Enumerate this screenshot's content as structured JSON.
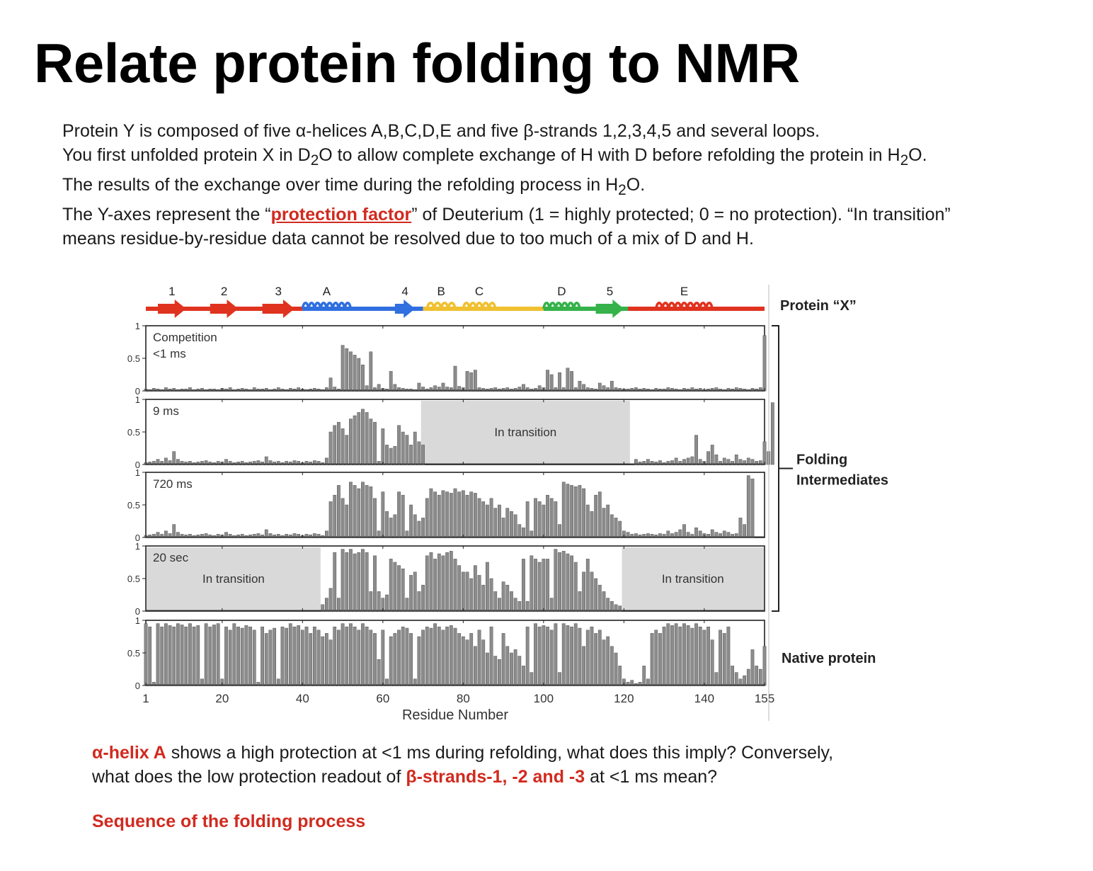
{
  "slide": {
    "title": "Relate protein folding to NMR",
    "intro": {
      "line1": "Protein Y is composed of five α-helices A,B,C,D,E and five β-strands 1,2,3,4,5 and several loops.",
      "line2_pre": "You first unfolded protein X in D",
      "line2_sub1": "2",
      "line2_mid": "O to allow complete exchange of H with D before refolding the protein in H",
      "line2_sub2": "2",
      "line2_post": "O.",
      "line3_pre": "The results of the exchange over time during the refolding process in H",
      "line3_sub": "2",
      "line3_post": "O.",
      "line4_pre": "The Y-axes represent the “",
      "line4_link": "protection factor",
      "line4_post": "” of Deuterium (1 = highly protected; 0 = no protection). “In transition”",
      "line5": "means residue-by-residue data cannot be resolved due to too much of a mix of D and H."
    },
    "question": {
      "q1_red": "α-helix A",
      "q1_text": " shows a high protection at <1 ms during refolding, what does this imply? Conversely,",
      "q2_text": "what does the low protection readout of ",
      "q2_red": "β-strands-1, -2 and -3",
      "q2_post": " at <1 ms mean?"
    },
    "sequence_heading": "Sequence of the folding process"
  },
  "colors": {
    "accent_red": "#d12a1f",
    "strand_red": "#e0331f",
    "helix_blue": "#2f6fe0",
    "helix_yellow": "#f0c030",
    "helix_green": "#35b24a",
    "bar_gray": "#8c8c8c",
    "transition_gray": "#d9d9d9"
  },
  "chart_data": {
    "type": "bar",
    "xlabel": "Residue Number",
    "xticks": [
      1,
      20,
      40,
      60,
      80,
      100,
      120,
      140,
      155
    ],
    "xlim": [
      1,
      155
    ],
    "yticks": [
      0,
      0.5,
      1
    ],
    "ylim": [
      0,
      1
    ],
    "protein_label": "Protein “X”",
    "topology": [
      {
        "label": "1",
        "type": "strand",
        "color": "#e0331f",
        "start": 4,
        "end": 11
      },
      {
        "label": "2",
        "type": "strand",
        "color": "#e0331f",
        "start": 17,
        "end": 24
      },
      {
        "label": "3",
        "type": "strand",
        "color": "#e0331f",
        "start": 30,
        "end": 38
      },
      {
        "label": "A",
        "type": "helix",
        "color": "#2f6fe0",
        "start": 40,
        "end": 52
      },
      {
        "label": "4",
        "type": "strand",
        "color": "#2f6fe0",
        "start": 63,
        "end": 68
      },
      {
        "label": "B",
        "type": "helix",
        "color": "#f0c030",
        "start": 71,
        "end": 78
      },
      {
        "label": "C",
        "type": "helix",
        "color": "#f0c030",
        "start": 80,
        "end": 88
      },
      {
        "label": "D",
        "type": "helix",
        "color": "#35b24a",
        "start": 100,
        "end": 109
      },
      {
        "label": "5",
        "type": "strand",
        "color": "#35b24a",
        "start": 113,
        "end": 120
      },
      {
        "label": "E",
        "type": "helix",
        "color": "#e0331f",
        "start": 128,
        "end": 142
      }
    ],
    "backbone_segments": [
      {
        "start": 1,
        "end": 40,
        "color": "#e0331f"
      },
      {
        "start": 40,
        "end": 70,
        "color": "#2f6fe0"
      },
      {
        "start": 70,
        "end": 100,
        "color": "#f0c030"
      },
      {
        "start": 100,
        "end": 121,
        "color": "#35b24a"
      },
      {
        "start": 121,
        "end": 155,
        "color": "#e0331f"
      }
    ],
    "panels": [
      {
        "label_lines": [
          "Competition",
          "<1 ms"
        ],
        "transitions": [],
        "values": [
          0.03,
          0.02,
          0.04,
          0.03,
          0.02,
          0.05,
          0.03,
          0.04,
          0.02,
          0.03,
          0.03,
          0.05,
          0.02,
          0.03,
          0.04,
          0.02,
          0.03,
          0.03,
          0.02,
          0.04,
          0.03,
          0.05,
          0.02,
          0.03,
          0.04,
          0.03,
          0.02,
          0.05,
          0.03,
          0.03,
          0.04,
          0.02,
          0.03,
          0.05,
          0.03,
          0.02,
          0.04,
          0.03,
          0.05,
          0.03,
          0.02,
          0.03,
          0.04,
          0.03,
          0.02,
          0.05,
          0.2,
          0.06,
          0.03,
          0.7,
          0.65,
          0.6,
          0.55,
          0.5,
          0.4,
          0.08,
          0.6,
          0.05,
          0.1,
          0.04,
          0.03,
          0.3,
          0.1,
          0.05,
          0.04,
          0.03,
          0.03,
          0.02,
          0.12,
          0.06,
          0.03,
          0.05,
          0.08,
          0.06,
          0.12,
          0.06,
          0.05,
          0.38,
          0.07,
          0.05,
          0.3,
          0.28,
          0.32,
          0.05,
          0.04,
          0.03,
          0.04,
          0.05,
          0.03,
          0.04,
          0.05,
          0.03,
          0.04,
          0.06,
          0.1,
          0.05,
          0.03,
          0.04,
          0.08,
          0.05,
          0.32,
          0.25,
          0.05,
          0.28,
          0.05,
          0.35,
          0.3,
          0.05,
          0.15,
          0.1,
          0.05,
          0.04,
          0.03,
          0.12,
          0.08,
          0.05,
          0.15,
          0.05,
          0.04,
          0.03,
          0.03,
          0.04,
          0.05,
          0.03,
          0.04,
          0.03,
          0.02,
          0.04,
          0.03,
          0.03,
          0.05,
          0.04,
          0.03,
          0.02,
          0.04,
          0.03,
          0.05,
          0.03,
          0.04,
          0.02,
          0.03,
          0.04,
          0.05,
          0.03,
          0.02,
          0.04,
          0.03,
          0.05,
          0.04,
          0.03,
          0.02,
          0.04,
          0.03,
          0.05,
          0.85
        ]
      },
      {
        "label_lines": [
          "9 ms"
        ],
        "transitions": [
          {
            "start": 70,
            "end": 121,
            "text": "In transition"
          }
        ],
        "values": [
          0.03,
          0.04,
          0.05,
          0.08,
          0.05,
          0.1,
          0.06,
          0.2,
          0.08,
          0.05,
          0.04,
          0.05,
          0.03,
          0.04,
          0.05,
          0.06,
          0.04,
          0.03,
          0.05,
          0.04,
          0.08,
          0.05,
          0.03,
          0.04,
          0.05,
          0.03,
          0.04,
          0.05,
          0.06,
          0.04,
          0.12,
          0.06,
          0.04,
          0.05,
          0.03,
          0.05,
          0.04,
          0.06,
          0.05,
          0.03,
          0.05,
          0.04,
          0.06,
          0.05,
          0.03,
          0.1,
          0.5,
          0.6,
          0.65,
          0.55,
          0.45,
          0.7,
          0.75,
          0.8,
          0.85,
          0.8,
          0.7,
          0.65,
          0.05,
          0.55,
          0.3,
          0.25,
          0.28,
          0.6,
          0.5,
          0.45,
          0.3,
          0.5,
          0.35,
          0.3,
          0,
          0,
          0,
          0,
          0,
          0,
          0,
          0,
          0,
          0,
          0,
          0,
          0,
          0,
          0,
          0,
          0,
          0,
          0,
          0,
          0,
          0,
          0,
          0,
          0,
          0,
          0,
          0,
          0,
          0,
          0,
          0,
          0,
          0,
          0,
          0,
          0,
          0,
          0,
          0,
          0,
          0,
          0,
          0,
          0,
          0,
          0,
          0,
          0,
          0,
          0,
          0,
          0.08,
          0.04,
          0.05,
          0.08,
          0.05,
          0.04,
          0.06,
          0.03,
          0.05,
          0.06,
          0.1,
          0.05,
          0.08,
          0.1,
          0.12,
          0.45,
          0.08,
          0.05,
          0.2,
          0.3,
          0.15,
          0.05,
          0.1,
          0.08,
          0.05,
          0.15,
          0.08,
          0.06,
          0.1,
          0.08,
          0.05,
          0.06,
          0.35,
          0.2,
          0.95
        ]
      },
      {
        "label_lines": [
          "720 ms"
        ],
        "transitions": [],
        "values": [
          0.03,
          0.04,
          0.05,
          0.08,
          0.05,
          0.1,
          0.06,
          0.2,
          0.08,
          0.05,
          0.04,
          0.05,
          0.03,
          0.04,
          0.05,
          0.06,
          0.04,
          0.03,
          0.05,
          0.04,
          0.08,
          0.05,
          0.03,
          0.04,
          0.05,
          0.03,
          0.04,
          0.05,
          0.06,
          0.04,
          0.12,
          0.06,
          0.04,
          0.05,
          0.03,
          0.05,
          0.04,
          0.06,
          0.05,
          0.03,
          0.05,
          0.04,
          0.06,
          0.05,
          0.03,
          0.1,
          0.55,
          0.65,
          0.8,
          0.6,
          0.5,
          0.85,
          0.8,
          0.75,
          0.85,
          0.8,
          0.78,
          0.6,
          0.1,
          0.7,
          0.4,
          0.3,
          0.35,
          0.7,
          0.65,
          0.1,
          0.5,
          0.35,
          0.25,
          0.3,
          0.6,
          0.75,
          0.7,
          0.65,
          0.72,
          0.7,
          0.68,
          0.75,
          0.7,
          0.72,
          0.65,
          0.7,
          0.68,
          0.6,
          0.55,
          0.5,
          0.6,
          0.45,
          0.5,
          0.3,
          0.45,
          0.4,
          0.35,
          0.2,
          0.15,
          0.55,
          0.1,
          0.6,
          0.55,
          0.5,
          0.65,
          0.6,
          0.55,
          0.2,
          0.85,
          0.82,
          0.8,
          0.78,
          0.8,
          0.75,
          0.5,
          0.4,
          0.65,
          0.7,
          0.45,
          0.5,
          0.35,
          0.3,
          0.25,
          0.1,
          0.08,
          0.05,
          0.06,
          0.04,
          0.05,
          0.06,
          0.05,
          0.04,
          0.06,
          0.05,
          0.1,
          0.06,
          0.08,
          0.12,
          0.2,
          0.08,
          0.05,
          0.15,
          0.1,
          0.06,
          0.05,
          0.12,
          0.08,
          0.06,
          0.1,
          0.08,
          0.05,
          0.06,
          0.3,
          0.2,
          0.95,
          0.9
        ]
      },
      {
        "label_lines": [
          "20 sec"
        ],
        "transitions": [
          {
            "start": 1,
            "end": 44,
            "text": "In transition"
          },
          {
            "start": 120,
            "end": 155,
            "text": "In transition"
          }
        ],
        "values": [
          0,
          0,
          0,
          0,
          0,
          0,
          0,
          0,
          0,
          0,
          0,
          0,
          0,
          0,
          0,
          0,
          0,
          0,
          0,
          0,
          0,
          0,
          0,
          0,
          0,
          0,
          0,
          0,
          0,
          0,
          0,
          0,
          0,
          0,
          0,
          0,
          0,
          0,
          0,
          0,
          0,
          0,
          0,
          0,
          0.1,
          0.2,
          0.35,
          0.9,
          0.2,
          0.95,
          0.9,
          0.95,
          0.88,
          0.9,
          0.95,
          0.9,
          0.3,
          0.85,
          0.3,
          0.2,
          0.25,
          0.8,
          0.75,
          0.7,
          0.65,
          0.2,
          0.55,
          0.6,
          0.3,
          0.4,
          0.85,
          0.9,
          0.8,
          0.88,
          0.85,
          0.9,
          0.92,
          0.8,
          0.7,
          0.6,
          0.6,
          0.5,
          0.7,
          0.55,
          0.4,
          0.75,
          0.5,
          0.3,
          0.2,
          0.45,
          0.4,
          0.3,
          0.2,
          0.15,
          0.8,
          0.15,
          0.85,
          0.8,
          0.75,
          0.8,
          0.8,
          0.2,
          0.95,
          0.9,
          0.92,
          0.88,
          0.85,
          0.75,
          0.3,
          0.6,
          0.8,
          0.6,
          0.5,
          0.4,
          0.3,
          0.2,
          0.15,
          0.1,
          0.08,
          0,
          0,
          0,
          0,
          0,
          0,
          0,
          0,
          0,
          0,
          0,
          0,
          0,
          0,
          0,
          0,
          0,
          0,
          0,
          0,
          0,
          0,
          0,
          0,
          0,
          0,
          0,
          0,
          0,
          0,
          0,
          0,
          0,
          0,
          0,
          0,
          0
        ]
      },
      {
        "label_lines": [],
        "transitions": [],
        "values": [
          0.95,
          0.9,
          0.05,
          0.95,
          0.9,
          0.95,
          0.92,
          0.9,
          0.95,
          0.93,
          0.9,
          0.95,
          0.9,
          0.92,
          0.1,
          0.95,
          0.9,
          0.93,
          0.95,
          0.1,
          0.9,
          0.85,
          0.95,
          0.9,
          0.88,
          0.92,
          0.9,
          0.85,
          0.05,
          0.9,
          0.8,
          0.85,
          0.88,
          0.1,
          0.9,
          0.88,
          0.95,
          0.9,
          0.92,
          0.85,
          0.9,
          0.8,
          0.9,
          0.85,
          0.75,
          0.8,
          0.7,
          0.9,
          0.85,
          0.95,
          0.9,
          0.95,
          0.9,
          0.85,
          0.95,
          0.9,
          0.85,
          0.8,
          0.4,
          0.85,
          0.1,
          0.75,
          0.8,
          0.85,
          0.9,
          0.88,
          0.8,
          0.1,
          0.75,
          0.85,
          0.9,
          0.88,
          0.95,
          0.9,
          0.85,
          0.9,
          0.92,
          0.88,
          0.8,
          0.75,
          0.7,
          0.8,
          0.6,
          0.85,
          0.7,
          0.5,
          0.9,
          0.45,
          0.4,
          0.8,
          0.6,
          0.5,
          0.55,
          0.45,
          0.3,
          0.9,
          0.2,
          0.95,
          0.9,
          0.92,
          0.9,
          0.85,
          0.95,
          0.2,
          0.95,
          0.92,
          0.9,
          0.95,
          0.88,
          0.6,
          0.85,
          0.9,
          0.8,
          0.85,
          0.7,
          0.75,
          0.6,
          0.5,
          0.3,
          0.1,
          0.05,
          0.08,
          0.03,
          0.05,
          0.3,
          0.1,
          0.8,
          0.85,
          0.8,
          0.9,
          0.95,
          0.92,
          0.95,
          0.9,
          0.95,
          0.92,
          0.88,
          0.95,
          0.9,
          0.85,
          0.9,
          0.7,
          0.2,
          0.85,
          0.8,
          0.9,
          0.3,
          0.2,
          0.1,
          0.15,
          0.25,
          0.55,
          0.3,
          0.25,
          0.6
        ]
      }
    ],
    "group_labels": {
      "folding": [
        "Folding",
        "Intermediates"
      ],
      "native": "Native protein"
    }
  }
}
